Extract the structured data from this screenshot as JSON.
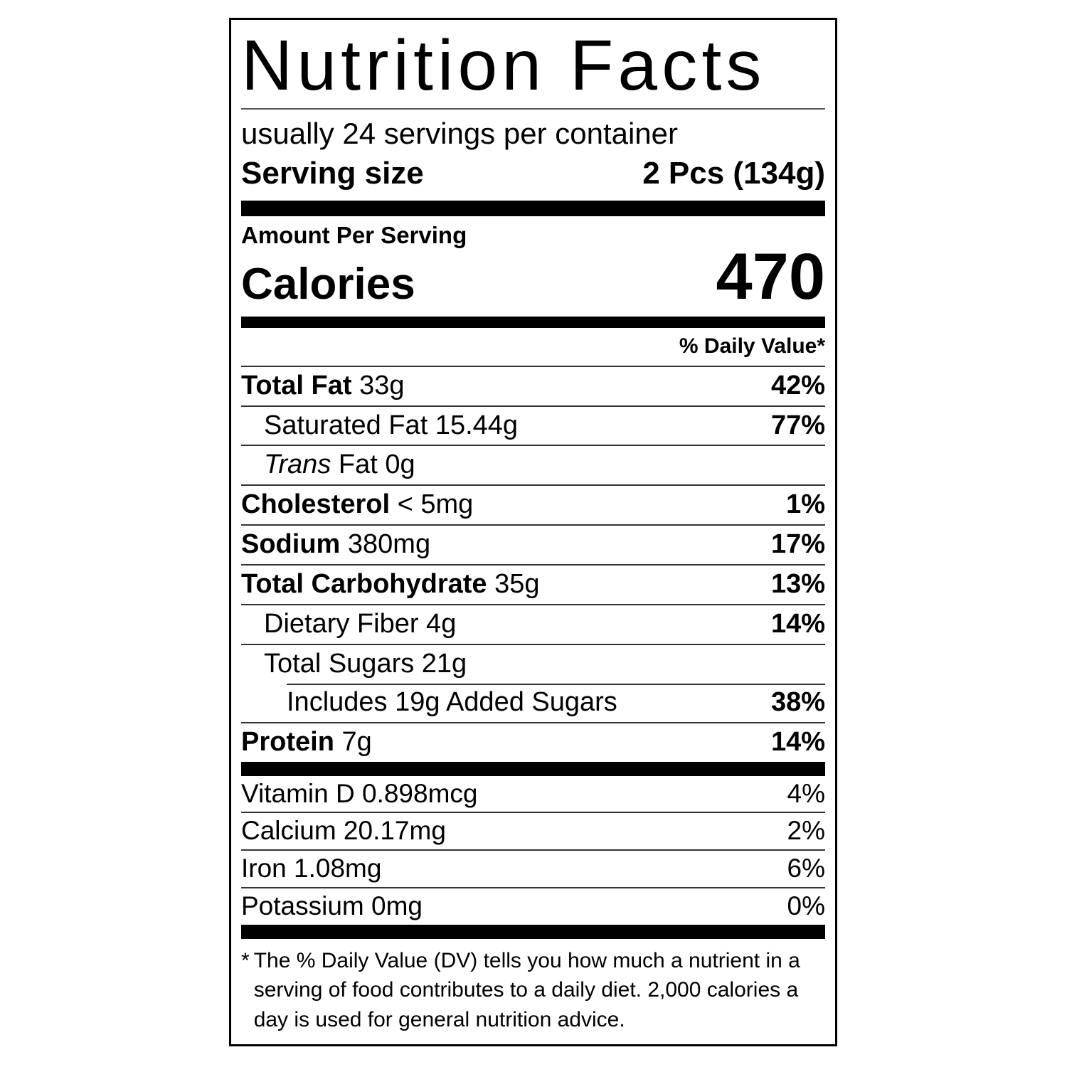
{
  "page": {
    "background": "#ffffff"
  },
  "label": {
    "border_color": "#000000",
    "title": "Nutrition Facts",
    "servings_per_container": "usually 24 servings per container",
    "serving_size": {
      "label": "Serving size",
      "value": "2 Pcs (134g)"
    },
    "amount_per_serving": "Amount Per Serving",
    "calories": {
      "label": "Calories",
      "value": "470"
    },
    "daily_value_header": "% Daily Value*",
    "nutrients": [
      {
        "name": "Total Fat",
        "name_bold": true,
        "italic_prefix": "",
        "amount": "33g",
        "dv": "42%",
        "indent": 0,
        "indent_rule": false
      },
      {
        "name": "Saturated Fat",
        "name_bold": false,
        "italic_prefix": "",
        "amount": "15.44g",
        "dv": "77%",
        "indent": 1,
        "indent_rule": false
      },
      {
        "name": "Fat",
        "name_bold": false,
        "italic_prefix": "Trans",
        "amount": "0g",
        "dv": "",
        "indent": 1,
        "indent_rule": false
      },
      {
        "name": "Cholesterol",
        "name_bold": true,
        "italic_prefix": "",
        "amount": "< 5mg",
        "dv": "1%",
        "indent": 0,
        "indent_rule": false
      },
      {
        "name": "Sodium",
        "name_bold": true,
        "italic_prefix": "",
        "amount": "380mg",
        "dv": "17%",
        "indent": 0,
        "indent_rule": false
      },
      {
        "name": "Total Carbohydrate",
        "name_bold": true,
        "italic_prefix": "",
        "amount": "35g",
        "dv": "13%",
        "indent": 0,
        "indent_rule": false
      },
      {
        "name": "Dietary Fiber",
        "name_bold": false,
        "italic_prefix": "",
        "amount": "4g",
        "dv": "14%",
        "indent": 1,
        "indent_rule": false
      },
      {
        "name": "Total Sugars",
        "name_bold": false,
        "italic_prefix": "",
        "amount": "21g",
        "dv": "",
        "indent": 1,
        "indent_rule": false
      },
      {
        "name": "Includes 19g Added Sugars",
        "name_bold": false,
        "italic_prefix": "",
        "amount": "",
        "dv": "38%",
        "indent": 2,
        "indent_rule": true
      },
      {
        "name": "Protein",
        "name_bold": true,
        "italic_prefix": "",
        "amount": "7g",
        "dv": "14%",
        "indent": 0,
        "indent_rule": false
      }
    ],
    "micronutrients": [
      {
        "name": "Vitamin D",
        "amount": "0.898mcg",
        "dv": "4%"
      },
      {
        "name": "Calcium",
        "amount": "20.17mg",
        "dv": "2%"
      },
      {
        "name": "Iron",
        "amount": "1.08mg",
        "dv": "6%"
      },
      {
        "name": "Potassium",
        "amount": "0mg",
        "dv": "0%"
      }
    ],
    "footnote": {
      "marker": "*",
      "lines": [
        "The % Daily Value (DV) tells you how much a nutrient in a",
        "serving of food contributes to a daily diet. 2,000 calories a",
        "day is used for general nutrition advice."
      ]
    }
  }
}
